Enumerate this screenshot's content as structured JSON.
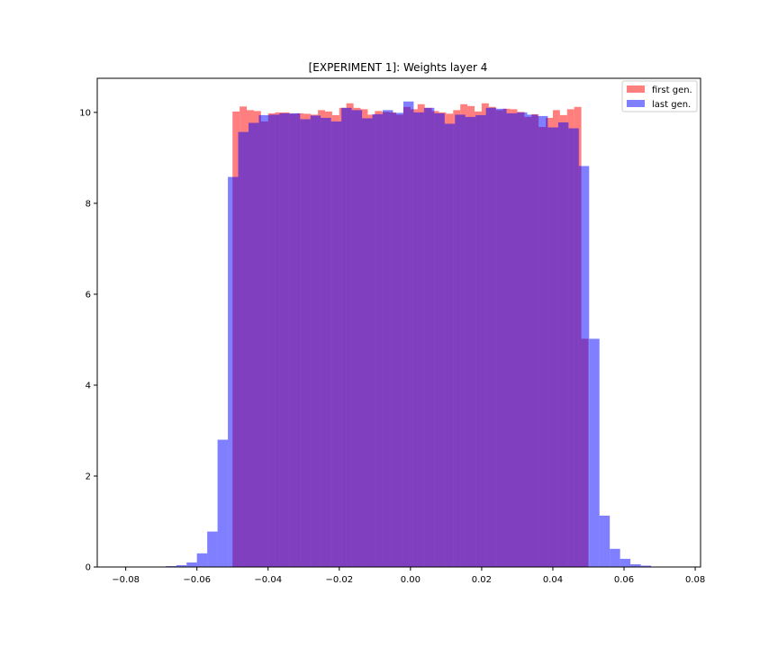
{
  "chart_data": {
    "type": "histogram",
    "title": "[EXPERIMENT 1]: Weights layer 4",
    "xlabel": "",
    "ylabel": "",
    "xlim": [
      -0.088,
      0.0815
    ],
    "ylim": [
      0,
      10.75
    ],
    "xticks": [
      -0.08,
      -0.06,
      -0.04,
      -0.02,
      0.0,
      0.02,
      0.04,
      0.06,
      0.08
    ],
    "xtick_labels": [
      "−0.08",
      "−0.06",
      "−0.04",
      "−0.02",
      "0.00",
      "0.02",
      "0.04",
      "0.06",
      "0.08"
    ],
    "yticks": [
      0,
      2,
      4,
      6,
      8,
      10
    ],
    "ytick_labels": [
      "0",
      "2",
      "4",
      "6",
      "8",
      "10"
    ],
    "grid": false,
    "legend_position": "top-right",
    "overlap_color": "#7f3fbf",
    "series": [
      {
        "name": "first gen.",
        "color": "#ff0000",
        "opacity": 0.5,
        "bin_edges": [
          -0.05,
          -0.048,
          -0.046,
          -0.044,
          -0.042,
          -0.04,
          -0.038,
          -0.036,
          -0.034,
          -0.032,
          -0.03,
          -0.028,
          -0.026,
          -0.024,
          -0.022,
          -0.02,
          -0.018,
          -0.016,
          -0.014,
          -0.012,
          -0.01,
          -0.008,
          -0.006,
          -0.004,
          -0.002,
          0.0,
          0.002,
          0.004,
          0.006,
          0.008,
          0.01,
          0.012,
          0.014,
          0.016,
          0.018,
          0.02,
          0.022,
          0.024,
          0.026,
          0.028,
          0.03,
          0.032,
          0.034,
          0.036,
          0.038,
          0.04,
          0.042,
          0.044,
          0.046,
          0.048,
          0.05
        ],
        "values": [
          10.02,
          10.13,
          10.05,
          10.03,
          9.8,
          9.98,
          10.0,
          10.0,
          9.97,
          9.98,
          9.97,
          9.95,
          10.05,
          10.02,
          9.94,
          10.1,
          10.2,
          10.1,
          10.07,
          9.95,
          10.03,
          10.01,
          10.0,
          9.95,
          10.12,
          10.07,
          10.18,
          10.1,
          10.03,
          10.0,
          9.97,
          10.05,
          10.18,
          10.14,
          10.02,
          10.2,
          10.12,
          10.05,
          10.08,
          10.07,
          10.01,
          9.9,
          9.96,
          9.68,
          9.88,
          10.05,
          9.94,
          10.07,
          10.12,
          5.02
        ]
      },
      {
        "name": "last gen.",
        "color": "#0000ff",
        "opacity": 0.5,
        "bin_edges": [
          -0.0687,
          -0.0658,
          -0.0629,
          -0.06,
          -0.0571,
          -0.0542,
          -0.0513,
          -0.0484,
          -0.0455,
          -0.0426,
          -0.0397,
          -0.0368,
          -0.0339,
          -0.031,
          -0.0281,
          -0.0252,
          -0.0223,
          -0.0194,
          -0.0165,
          -0.0136,
          -0.0107,
          -0.0078,
          -0.0049,
          -0.002,
          0.0009,
          0.0038,
          0.0067,
          0.0096,
          0.0125,
          0.0154,
          0.0183,
          0.0212,
          0.0241,
          0.027,
          0.0299,
          0.0328,
          0.0357,
          0.0386,
          0.0415,
          0.0444,
          0.0473,
          0.0502,
          0.0531,
          0.056,
          0.0589,
          0.0618,
          0.0647,
          0.0676
        ],
        "values": [
          0.02,
          0.04,
          0.1,
          0.3,
          0.78,
          2.8,
          8.58,
          9.57,
          9.77,
          9.94,
          9.95,
          9.98,
          9.98,
          9.85,
          9.93,
          9.88,
          9.8,
          10.1,
          10.05,
          9.87,
          9.96,
          10.05,
          9.99,
          10.24,
          10.0,
          10.1,
          9.98,
          9.75,
          9.95,
          9.9,
          9.94,
          10.1,
          10.08,
          9.98,
          10.0,
          9.95,
          9.92,
          9.67,
          9.78,
          9.65,
          8.82,
          5.02,
          1.13,
          0.4,
          0.18,
          0.06,
          0.03
        ]
      }
    ]
  }
}
